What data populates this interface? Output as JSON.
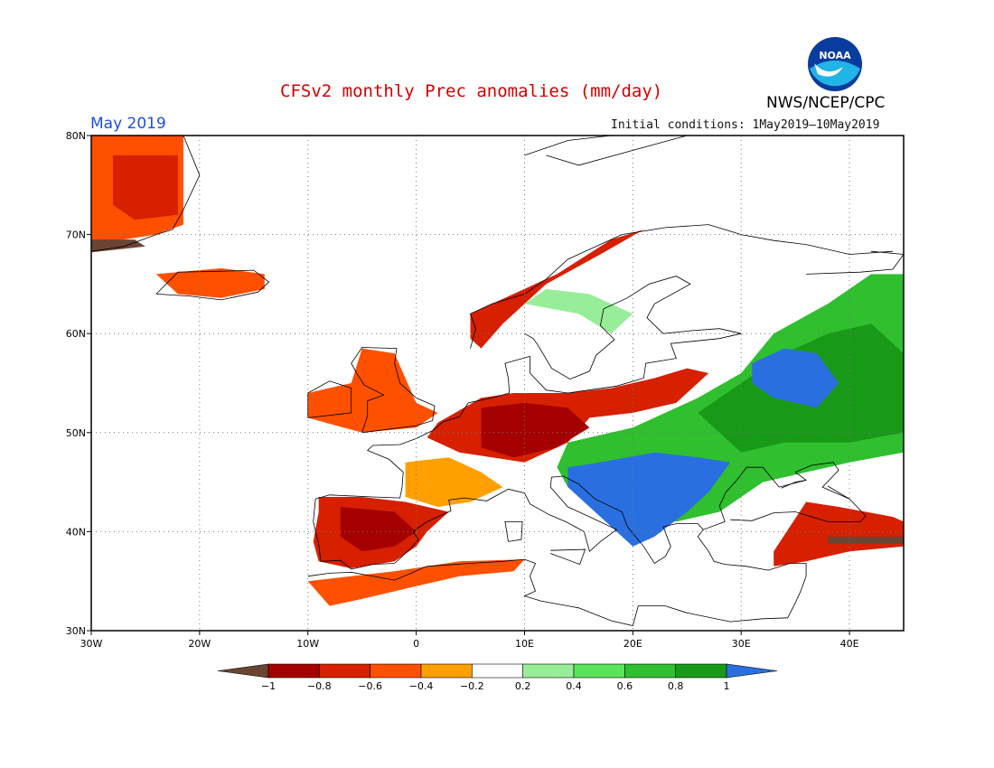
{
  "header": {
    "title": "CFSv2 monthly Prec anomalies (mm/day)",
    "agency": "NWS/NCEP/CPC",
    "month": "May 2019",
    "initial_conditions": "Initial conditions: 1May2019—10May2019",
    "logo_text": "NOAA"
  },
  "map": {
    "lon_range": [
      -30,
      45
    ],
    "lat_range": [
      30,
      80
    ],
    "lon_ticks": [
      {
        "value": -30,
        "label": "30W"
      },
      {
        "value": -20,
        "label": "20W"
      },
      {
        "value": -10,
        "label": "10W"
      },
      {
        "value": 0,
        "label": "0"
      },
      {
        "value": 10,
        "label": "10E"
      },
      {
        "value": 20,
        "label": "20E"
      },
      {
        "value": 30,
        "label": "30E"
      },
      {
        "value": 40,
        "label": "40E"
      }
    ],
    "lat_ticks": [
      {
        "value": 30,
        "label": "30N"
      },
      {
        "value": 40,
        "label": "40N"
      },
      {
        "value": 50,
        "label": "50N"
      },
      {
        "value": 60,
        "label": "60N"
      },
      {
        "value": 70,
        "label": "70N"
      },
      {
        "value": 80,
        "label": "80N"
      }
    ],
    "gridlines": "dotted",
    "anomaly_regions": [
      {
        "name": "Greenland east coast",
        "class": -5,
        "points": [
          [
            -30,
            80
          ],
          [
            -21.5,
            80
          ],
          [
            -21.5,
            76
          ],
          [
            -21.5,
            71
          ],
          [
            -24,
            70
          ],
          [
            -27,
            69.5
          ],
          [
            -30,
            69
          ]
        ]
      },
      {
        "name": "Greenland inner",
        "class": -6,
        "points": [
          [
            -28,
            78
          ],
          [
            -22,
            78
          ],
          [
            -22,
            72
          ],
          [
            -26,
            71.5
          ],
          [
            -28,
            73
          ]
        ]
      },
      {
        "name": "Greenland southern tip",
        "class": -8,
        "points": [
          [
            -30,
            69.5
          ],
          [
            -26,
            69.5
          ],
          [
            -25,
            68.8
          ],
          [
            -30,
            68.2
          ]
        ]
      },
      {
        "name": "Iceland",
        "class": -5,
        "points": [
          [
            -24,
            66
          ],
          [
            -18,
            66.6
          ],
          [
            -14,
            66
          ],
          [
            -14,
            64.5
          ],
          [
            -18,
            63.6
          ],
          [
            -22,
            64
          ]
        ]
      },
      {
        "name": "Ireland and Britain",
        "class": -5,
        "points": [
          [
            -10,
            54
          ],
          [
            -6,
            55
          ],
          [
            -5,
            58.5
          ],
          [
            -2,
            58
          ],
          [
            0,
            53
          ],
          [
            2,
            52
          ],
          [
            0,
            50.5
          ],
          [
            -5,
            50
          ],
          [
            -10,
            51.5
          ]
        ]
      },
      {
        "name": "Western Norway",
        "class": -6,
        "points": [
          [
            5,
            62
          ],
          [
            8,
            63.5
          ],
          [
            13,
            66
          ],
          [
            18,
            69.5
          ],
          [
            21,
            70.5
          ],
          [
            17,
            68
          ],
          [
            12,
            65
          ],
          [
            8,
            61
          ],
          [
            6,
            58.5
          ],
          [
            5,
            59.5
          ]
        ]
      },
      {
        "name": "Central Europe",
        "class": -6,
        "points": [
          [
            2,
            51
          ],
          [
            6,
            53.5
          ],
          [
            9,
            54
          ],
          [
            14,
            54
          ],
          [
            18,
            54.5
          ],
          [
            22,
            55.5
          ],
          [
            25,
            56.5
          ],
          [
            27,
            56
          ],
          [
            24,
            53
          ],
          [
            20,
            52
          ],
          [
            16,
            51.5
          ],
          [
            14,
            49
          ],
          [
            10,
            47
          ],
          [
            7,
            47.5
          ],
          [
            4,
            48
          ],
          [
            1,
            49.5
          ]
        ]
      },
      {
        "name": "Central Europe core",
        "class": -7,
        "points": [
          [
            6,
            52.5
          ],
          [
            10,
            53
          ],
          [
            14,
            52.5
          ],
          [
            16,
            50.5
          ],
          [
            13,
            48.5
          ],
          [
            9,
            47.5
          ],
          [
            6,
            48.5
          ]
        ]
      },
      {
        "name": "France south",
        "class": -4,
        "points": [
          [
            -1,
            47
          ],
          [
            3,
            47.5
          ],
          [
            6,
            46
          ],
          [
            8,
            44.5
          ],
          [
            5,
            43
          ],
          [
            2,
            42.5
          ],
          [
            -1,
            43.5
          ]
        ]
      },
      {
        "name": "Iberia",
        "class": -6,
        "points": [
          [
            -9,
            43.5
          ],
          [
            -5,
            43.5
          ],
          [
            -1,
            43
          ],
          [
            3,
            42
          ],
          [
            1,
            40
          ],
          [
            0,
            38.5
          ],
          [
            -2,
            37
          ],
          [
            -6,
            36.3
          ],
          [
            -9,
            37
          ],
          [
            -9.5,
            39
          ],
          [
            -9,
            42
          ]
        ]
      },
      {
        "name": "Iberia core",
        "class": -7,
        "points": [
          [
            -7,
            42.5
          ],
          [
            -2,
            42
          ],
          [
            0,
            40
          ],
          [
            -2,
            38.5
          ],
          [
            -5,
            38
          ],
          [
            -7,
            39.5
          ]
        ]
      },
      {
        "name": "North Africa",
        "class": -5,
        "points": [
          [
            -10,
            35
          ],
          [
            -2,
            36
          ],
          [
            4,
            37
          ],
          [
            10,
            37.2
          ],
          [
            9,
            36
          ],
          [
            4,
            35.5
          ],
          [
            0,
            34.5
          ],
          [
            -5,
            33.2
          ],
          [
            -8,
            32.5
          ]
        ]
      },
      {
        "name": "Turkey east",
        "class": -6,
        "points": [
          [
            36,
            43
          ],
          [
            39,
            42.5
          ],
          [
            44,
            41.5
          ],
          [
            45,
            41
          ],
          [
            45,
            38.5
          ],
          [
            40,
            38
          ],
          [
            36,
            37
          ],
          [
            33,
            36.5
          ],
          [
            33,
            38
          ]
        ]
      },
      {
        "name": "Caucasus",
        "class": -8,
        "points": [
          [
            38,
            39.5
          ],
          [
            45,
            39.5
          ],
          [
            45,
            38.8
          ],
          [
            38,
            38.8
          ]
        ]
      },
      {
        "name": "Scandinavia interior",
        "class": 2,
        "points": [
          [
            10,
            63
          ],
          [
            15,
            62
          ],
          [
            18,
            60
          ],
          [
            20,
            62
          ],
          [
            16,
            64
          ],
          [
            12,
            64.5
          ]
        ]
      },
      {
        "name": "Eastern Europe",
        "class": 4,
        "points": [
          [
            14,
            49
          ],
          [
            20,
            50.5
          ],
          [
            26,
            53.5
          ],
          [
            30,
            56
          ],
          [
            33,
            60
          ],
          [
            38,
            63
          ],
          [
            42,
            66
          ],
          [
            45,
            66
          ],
          [
            45,
            48
          ],
          [
            40,
            47
          ],
          [
            36,
            46
          ],
          [
            32,
            45
          ],
          [
            28,
            42
          ],
          [
            24,
            41
          ],
          [
            21,
            41.5
          ],
          [
            17,
            43
          ],
          [
            14,
            44.5
          ],
          [
            13,
            46.5
          ]
        ]
      },
      {
        "name": "Eastern Europe strong",
        "class": 5,
        "points": [
          [
            26,
            52
          ],
          [
            30,
            55
          ],
          [
            34,
            58
          ],
          [
            38,
            60
          ],
          [
            42,
            61
          ],
          [
            45,
            58
          ],
          [
            45,
            50
          ],
          [
            40,
            49
          ],
          [
            34,
            49
          ],
          [
            30,
            48
          ]
        ]
      },
      {
        "name": "Balkans",
        "class": 6,
        "points": [
          [
            14,
            46.5
          ],
          [
            17,
            47
          ],
          [
            22,
            48
          ],
          [
            26,
            47.5
          ],
          [
            29,
            47
          ],
          [
            27,
            44
          ],
          [
            25,
            42
          ],
          [
            22,
            39.5
          ],
          [
            20,
            38.5
          ],
          [
            18,
            40.5
          ],
          [
            16,
            42.5
          ],
          [
            14,
            44.5
          ]
        ]
      },
      {
        "name": "Western Russia",
        "class": 6,
        "points": [
          [
            31,
            57
          ],
          [
            34,
            58.5
          ],
          [
            37,
            58
          ],
          [
            39,
            55
          ],
          [
            37,
            52.5
          ],
          [
            33,
            53.5
          ],
          [
            31,
            55
          ]
        ]
      }
    ]
  },
  "colorbar": {
    "labels": [
      "−1",
      "−0.8",
      "−0.6",
      "−0.4",
      "−0.2",
      "0.2",
      "0.4",
      "0.6",
      "0.8",
      "1"
    ],
    "colors": {
      "-8": "#6b4433",
      "-7": "#a50000",
      "-6": "#d62000",
      "-5": "#ff5000",
      "-4": "#ffa000",
      "2": "#98ee98",
      "3": "#5ae45a",
      "4": "#2fbf2f",
      "5": "#189a18",
      "6": "#2a6fe0"
    }
  }
}
